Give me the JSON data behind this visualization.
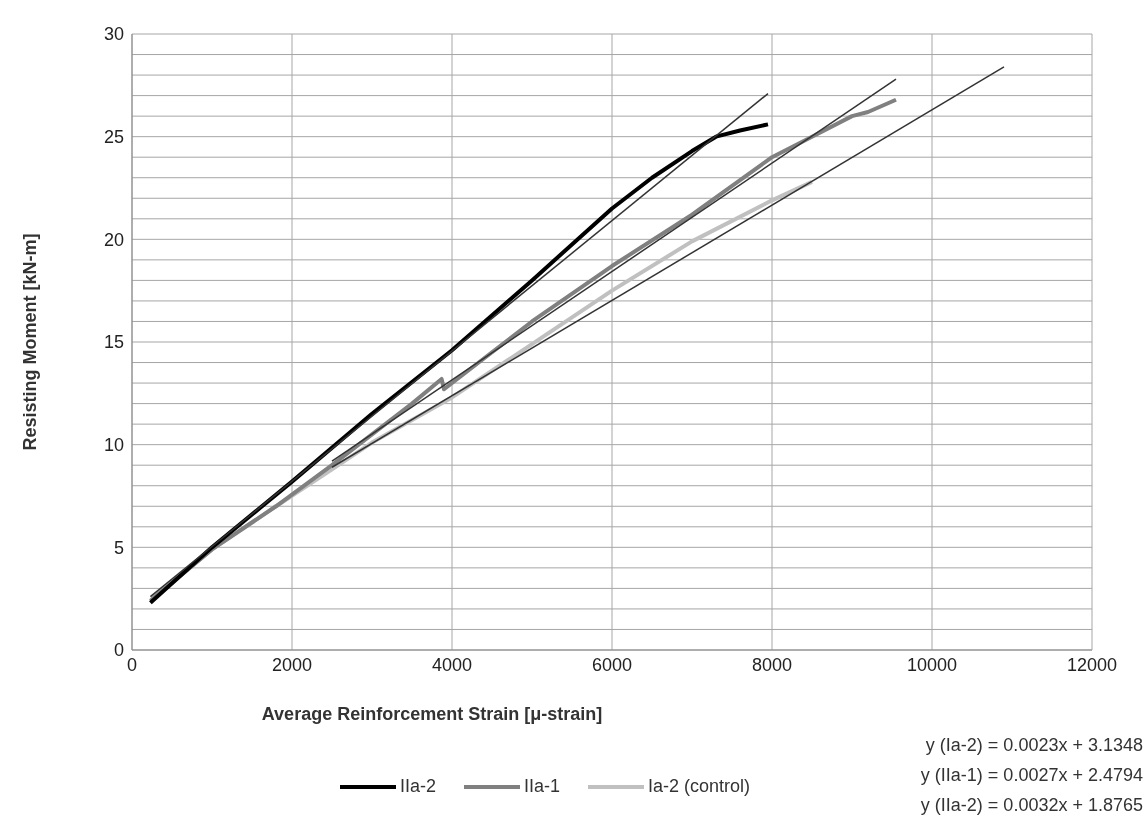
{
  "chart_data": {
    "type": "line",
    "xlabel": "Average Reinforcement Strain [μ-strain]",
    "ylabel": "Resisting Moment [kN-m]",
    "xlim": [
      0,
      12000
    ],
    "xticks": [
      0,
      2000,
      4000,
      6000,
      8000,
      10000,
      12000
    ],
    "ylim": [
      0,
      30
    ],
    "yticks": [
      0,
      {
        "value": 1,
        "label": null
      },
      {
        "value": 2,
        "label": null
      },
      {
        "value": 3,
        "label": null
      },
      {
        "value": 4,
        "label": null
      },
      5,
      {
        "value": 6,
        "label": null
      },
      {
        "value": 7,
        "label": null
      },
      {
        "value": 8,
        "label": null
      },
      {
        "value": 9,
        "label": null
      },
      10,
      {
        "value": 11,
        "label": null
      },
      {
        "value": 12,
        "label": null
      },
      {
        "value": 13,
        "label": null
      },
      {
        "value": 14,
        "label": null
      },
      15,
      {
        "value": 16,
        "label": null
      },
      {
        "value": 17,
        "label": null
      },
      {
        "value": 18,
        "label": null
      },
      {
        "value": 19,
        "label": null
      },
      20,
      {
        "value": 21,
        "label": null
      },
      {
        "value": 22,
        "label": null
      },
      {
        "value": 23,
        "label": null
      },
      {
        "value": 24,
        "label": null
      },
      25,
      {
        "value": 26,
        "label": null
      },
      {
        "value": 27,
        "label": null
      },
      {
        "value": 28,
        "label": null
      },
      {
        "value": 29,
        "label": null
      },
      30
    ],
    "grid": true,
    "legend": "bottom",
    "marker": "none",
    "series": [
      {
        "name": "Ia-2 (control)",
        "color": "#c0c0c0",
        "x": [
          250,
          1000,
          1800,
          2500,
          3000,
          4000,
          5000,
          6000,
          7000,
          8000,
          8500
        ],
        "values": [
          2.5,
          4.9,
          7.0,
          8.8,
          10.1,
          12.3,
          14.9,
          17.5,
          19.9,
          21.9,
          22.8
        ]
      },
      {
        "name": "IIa-1",
        "color": "#808080",
        "x": [
          230,
          1000,
          1800,
          2500,
          3000,
          3500,
          3870,
          3900,
          4500,
          5000,
          6000,
          7000,
          8000,
          8500,
          9000,
          9200,
          9550
        ],
        "values": [
          2.4,
          4.9,
          7.0,
          9.0,
          10.5,
          12.0,
          13.2,
          12.7,
          14.5,
          16.0,
          18.7,
          21.2,
          24.0,
          25.0,
          26.0,
          26.2,
          26.8
        ]
      },
      {
        "name": "IIa-2",
        "color": "#000000",
        "x": [
          230,
          1000,
          2000,
          3000,
          4000,
          5000,
          6000,
          6500,
          7000,
          7300,
          7600,
          7950
        ],
        "values": [
          2.3,
          5.0,
          8.2,
          11.5,
          14.6,
          18.0,
          21.5,
          23.0,
          24.3,
          25.0,
          25.3,
          25.6
        ]
      },
      {
        "color": "#333333",
        "x": [
          230,
          7950
        ],
        "values": [
          2.6,
          27.1
        ]
      },
      {
        "color": "#333333",
        "x": [
          2500,
          9550
        ],
        "values": [
          9.2,
          27.8
        ]
      },
      {
        "color": "#333333",
        "x": [
          2500,
          10900
        ],
        "values": [
          8.9,
          28.4
        ]
      }
    ],
    "annotations": [
      "y (Ia-2) = 0.0023x + 3.1348",
      "y (IIa-1) = 0.0027x + 2.4794",
      "y (IIa-2) = 0.0032x + 1.8765"
    ]
  }
}
